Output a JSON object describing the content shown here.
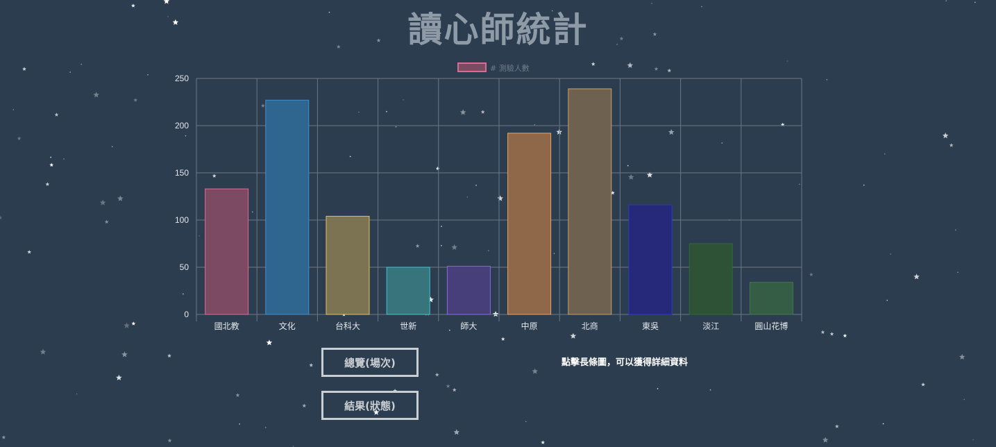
{
  "page": {
    "title": "讀心師統計",
    "buttons": {
      "overview": "總覽(場次)",
      "result": "結果(狀態)"
    },
    "hint": "點擊長條圖，可以獲得詳細資料"
  },
  "chart_data": {
    "type": "bar",
    "title": "",
    "xlabel": "",
    "ylabel": "",
    "ylim": [
      0,
      250
    ],
    "yticks": [
      0,
      50,
      100,
      150,
      200,
      250
    ],
    "grid": true,
    "legend_position": "top",
    "categories": [
      "國北教",
      "文化",
      "台科大",
      "世新",
      "師大",
      "中原",
      "北商",
      "東吳",
      "淡江",
      "圓山花博"
    ],
    "series": [
      {
        "name": "# 測驗人數",
        "values": [
          133,
          227,
          104,
          50,
          51,
          192,
          239,
          116,
          75,
          34
        ]
      }
    ],
    "bar_fill_colors": [
      "#7d4a63",
      "#2f6690",
      "#7b7352",
      "#37747b",
      "#463f7a",
      "#8e6848",
      "#6e6150",
      "#26297a",
      "#2e5236",
      "#355c44"
    ],
    "bar_border_colors": [
      "#e06a8e",
      "#3f8fd0",
      "#e6c05c",
      "#48c2c8",
      "#8b69e6",
      "#f0a15c",
      "#c8a068",
      "#3036c8",
      "#2f6a3a",
      "#3e7a50"
    ],
    "legend_color": "#7d4a63",
    "legend_border_color": "#e06a8e"
  }
}
